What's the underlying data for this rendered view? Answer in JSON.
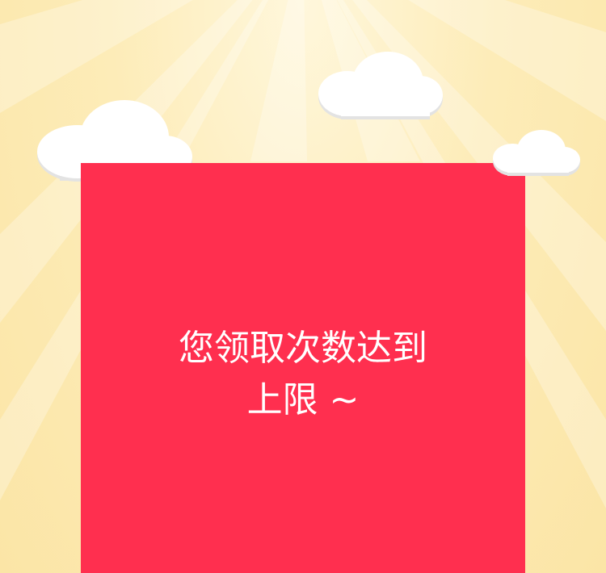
{
  "card": {
    "message_line1": "您领取次数达到",
    "message_line2": "上限 ~"
  },
  "colors": {
    "card": "#ff2f4f",
    "background": "#fdecb8",
    "cloud": "#ffffff",
    "text": "#ffffff"
  },
  "icons": [
    "sun-rays",
    "cloud-icon"
  ]
}
